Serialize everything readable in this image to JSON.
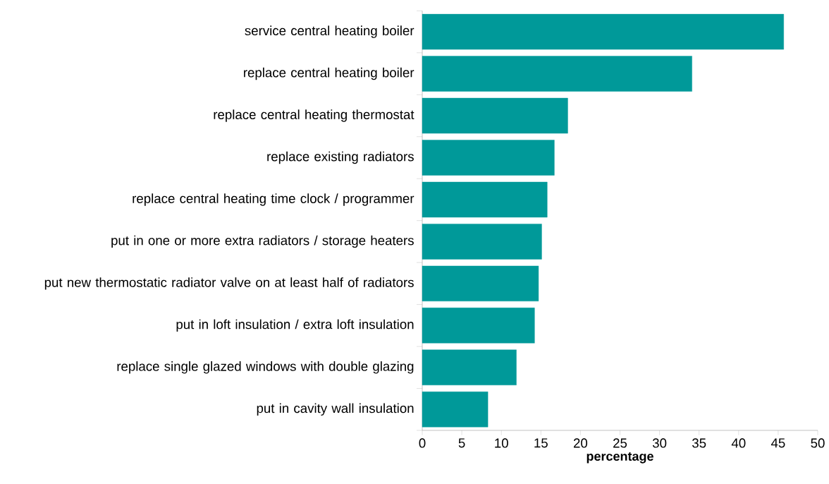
{
  "chart_data": {
    "type": "bar",
    "orientation": "horizontal",
    "xlabel": "percentage",
    "categories": [
      "service central heating boiler",
      "replace central heating boiler",
      "replace central heating thermostat",
      "replace existing radiators",
      "replace central heating time clock / programmer",
      "put in one or more extra radiators / storage heaters",
      "put new thermostatic radiator valve on at least half of radiators",
      "put in loft insulation / extra loft insulation",
      "replace single glazed windows with double glazing",
      "put in cavity wall insulation"
    ],
    "values": [
      45.7,
      34.1,
      18.4,
      16.7,
      15.8,
      15.1,
      14.7,
      14.2,
      11.9,
      8.3
    ],
    "color": "#009999",
    "xlim": [
      0,
      50
    ],
    "xticks": [
      0,
      5,
      10,
      15,
      20,
      25,
      30,
      35,
      40,
      45,
      50
    ],
    "line_style": "solid"
  }
}
